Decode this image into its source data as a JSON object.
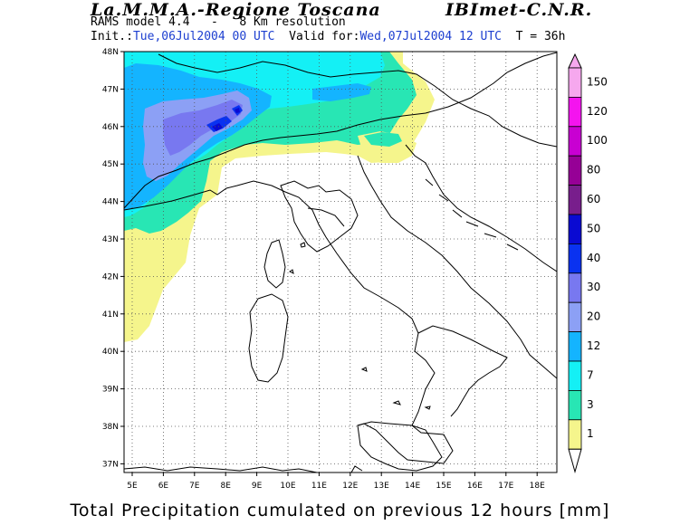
{
  "header": {
    "title": "La.M.M.A.-Regione Toscana",
    "institute": "IBImet-C.N.R.",
    "model": "RAMS model 4.4   -   8 Km resolution",
    "init_label": "Init.:",
    "init_value": "Tue,06Jul2004 00 UTC",
    "valid_label": "Valid for:",
    "valid_value": "Wed,07Jul2004 12 UTC",
    "forecast_time": "T = 36h"
  },
  "map": {
    "lat_ticks": [
      "48N",
      "47N",
      "46N",
      "45N",
      "44N",
      "43N",
      "42N",
      "41N",
      "40N",
      "39N",
      "38N",
      "37N"
    ],
    "lon_ticks": [
      "5E",
      "6E",
      "7E",
      "8E",
      "9E",
      "10E",
      "11E",
      "12E",
      "13E",
      "14E",
      "15E",
      "16E",
      "17E",
      "18E"
    ],
    "grid": "dotted",
    "region": "Italy and Alps"
  },
  "legend": {
    "levels": [
      "150",
      "120",
      "100",
      "80",
      "60",
      "50",
      "40",
      "30",
      "20",
      "12",
      "7",
      "3",
      "1"
    ],
    "colors": [
      "#f6a8ee",
      "#f414ef",
      "#c800d2",
      "#960096",
      "#781e8c",
      "#0a0ad2",
      "#0a32f0",
      "#7878f0",
      "#8ca0f5",
      "#14b4ff",
      "#14f0f5",
      "#28e6b4",
      "#f5f58c"
    ]
  },
  "footer": {
    "title": "Total Precipitation cumulated on previous 12 hours [mm]"
  }
}
